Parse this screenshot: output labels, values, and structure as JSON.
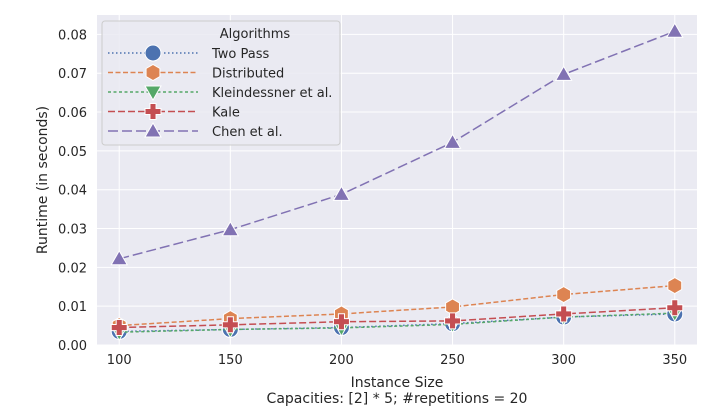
{
  "chart_data": {
    "type": "line",
    "xlabel": "Instance Size",
    "subtitle": "Capacities: [2] * 5; #repetitions = 20",
    "ylabel": "Runtime (in seconds)",
    "x": [
      100,
      150,
      200,
      250,
      300,
      350
    ],
    "x_ticks": [
      "100",
      "150",
      "200",
      "250",
      "300",
      "350"
    ],
    "xlim": [
      90,
      360
    ],
    "ylim": [
      0,
      0.085
    ],
    "y_ticks": [
      "0.00",
      "0.01",
      "0.02",
      "0.03",
      "0.04",
      "0.05",
      "0.06",
      "0.07",
      "0.08"
    ],
    "grid": true,
    "legend": {
      "title": "Algorithms",
      "position": "top-left"
    },
    "series": [
      {
        "name": "Two Pass",
        "color": "#4c72b0",
        "marker": "circle",
        "dash": "dotted",
        "values": [
          0.0035,
          0.004,
          0.0045,
          0.0055,
          0.0072,
          0.008
        ]
      },
      {
        "name": "Distributed",
        "color": "#dd8452",
        "marker": "hexagon",
        "dash": "dashed-short",
        "values": [
          0.005,
          0.0068,
          0.008,
          0.0098,
          0.013,
          0.0153
        ]
      },
      {
        "name": "Kleindessner et al.",
        "color": "#55a868",
        "marker": "triangle-down",
        "dash": "dashed-fine",
        "values": [
          0.0033,
          0.004,
          0.0044,
          0.0053,
          0.0072,
          0.0082
        ]
      },
      {
        "name": "Kale",
        "color": "#c44e52",
        "marker": "plus",
        "dash": "dashed",
        "values": [
          0.0045,
          0.0052,
          0.006,
          0.0062,
          0.008,
          0.0096
        ]
      },
      {
        "name": "Chen et al.",
        "color": "#8172b3",
        "marker": "triangle-up",
        "dash": "dashed-long",
        "values": [
          0.0222,
          0.0297,
          0.0388,
          0.0522,
          0.0697,
          0.0808
        ]
      }
    ]
  }
}
